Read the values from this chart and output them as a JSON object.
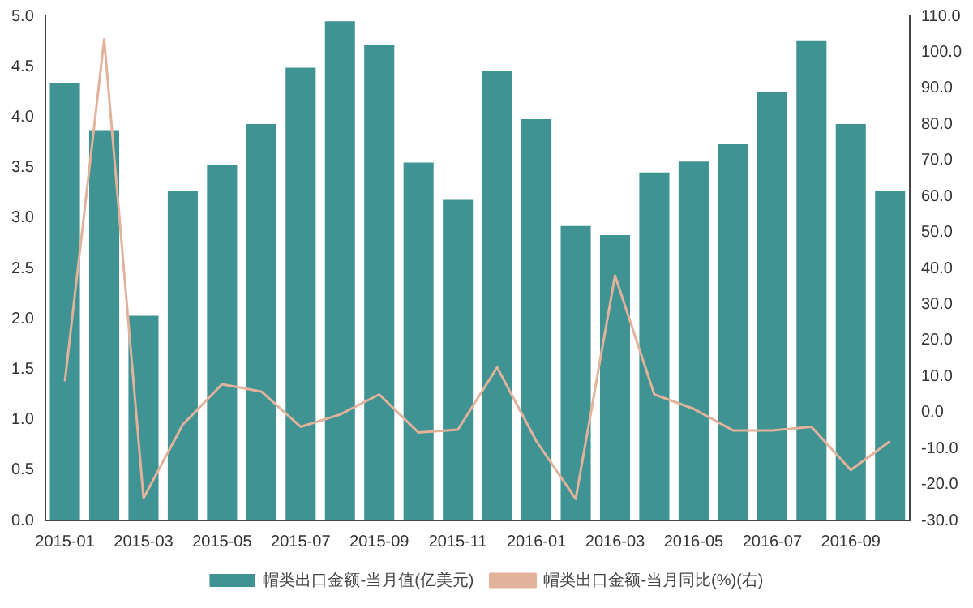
{
  "chart_data": {
    "type": "bar",
    "categories": [
      "2015-01",
      null,
      "2015-03",
      null,
      "2015-05",
      null,
      "2015-07",
      null,
      "2015-09",
      null,
      "2015-11",
      null,
      "2016-01",
      null,
      "2016-03",
      null,
      "2016-05",
      null,
      "2016-07",
      null,
      "2016-09",
      null
    ],
    "series": [
      {
        "name": "帽类出口金额-当月值(亿美元)",
        "color": "#3f9393",
        "values": [
          4.34,
          3.87,
          2.03,
          3.27,
          3.52,
          3.93,
          4.49,
          4.95,
          4.71,
          3.55,
          3.18,
          4.46,
          3.98,
          2.92,
          2.83,
          3.45,
          3.56,
          3.73,
          4.25,
          4.76,
          3.93,
          3.27
        ]
      },
      {
        "name": "帽类出口金额-当月同比(%)(右)",
        "type": "line",
        "axis": "y2",
        "color": "#e2b29a",
        "values": [
          8.6,
          103.6,
          -23.8,
          -3.4,
          7.8,
          5.8,
          -4,
          -0.6,
          5,
          -5.6,
          -4.8,
          12.5,
          -8,
          -24,
          38,
          5,
          1,
          -5,
          -5,
          -4,
          -16,
          -8
        ]
      }
    ],
    "ylim": [
      0,
      5
    ],
    "yticks": [
      {
        "value": 0,
        "label": "0.0"
      },
      {
        "value": 0.5,
        "label": "0.5"
      },
      {
        "value": 1,
        "label": "1.0"
      },
      {
        "value": 1.5,
        "label": "1.5"
      },
      {
        "value": 2,
        "label": "2.0"
      },
      {
        "value": 2.5,
        "label": "2.5"
      },
      {
        "value": 3,
        "label": "3.0"
      },
      {
        "value": 3.5,
        "label": "3.5"
      },
      {
        "value": 4,
        "label": "4.0"
      },
      {
        "value": 4.5,
        "label": "4.5"
      },
      {
        "value": 5,
        "label": "5.0"
      }
    ],
    "y2lim": [
      -30,
      110
    ],
    "y2ticks": [
      {
        "value": -30,
        "label": "-30.0"
      },
      {
        "value": -20,
        "label": "-20.0"
      },
      {
        "value": -10,
        "label": "-10.0"
      },
      {
        "value": 0,
        "label": "0.0"
      },
      {
        "value": 10,
        "label": "10.0"
      },
      {
        "value": 20,
        "label": "20.0"
      },
      {
        "value": 30,
        "label": "30.0"
      },
      {
        "value": 40,
        "label": "40.0"
      },
      {
        "value": 50,
        "label": "50.0"
      },
      {
        "value": 60,
        "label": "60.0"
      },
      {
        "value": 70,
        "label": "70.0"
      },
      {
        "value": 80,
        "label": "80.0"
      },
      {
        "value": 90,
        "label": "90.0"
      },
      {
        "value": 100,
        "label": "100.0"
      },
      {
        "value": 110,
        "label": "110.0"
      }
    ],
    "grid": false,
    "legend": "bottom",
    "marker": "none"
  }
}
